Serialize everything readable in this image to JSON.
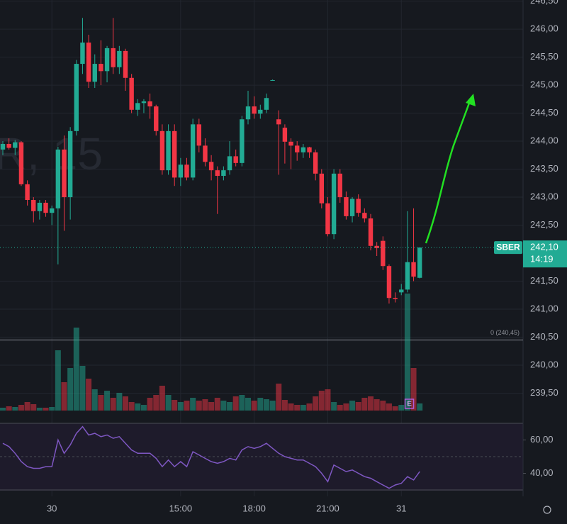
{
  "chart_data": {
    "type": "candlestick",
    "watermark": "R, 15",
    "symbol": "SBER",
    "countdown": "14:19",
    "last_price": {
      "value": 242.1,
      "label": "242,10"
    },
    "baseline": {
      "value": 240.45,
      "label": "0 (240,45)"
    },
    "event_label": "E",
    "up_color": "#22ab94",
    "down_color": "#f23645",
    "grid": true,
    "ylim": [
      239.19,
      246.52
    ],
    "yticks": [
      {
        "value": 246.5,
        "label": "246,50"
      },
      {
        "value": 246.0,
        "label": "246,00"
      },
      {
        "value": 245.5,
        "label": "245,50"
      },
      {
        "value": 245.0,
        "label": "245,00"
      },
      {
        "value": 244.5,
        "label": "244,50"
      },
      {
        "value": 244.0,
        "label": "244,00"
      },
      {
        "value": 243.5,
        "label": "243,50"
      },
      {
        "value": 243.0,
        "label": "243,00"
      },
      {
        "value": 242.5,
        "label": "242,50"
      },
      {
        "value": 241.5,
        "label": "241,50"
      },
      {
        "value": 241.0,
        "label": "241,00"
      },
      {
        "value": 240.5,
        "label": "240,50"
      },
      {
        "value": 240.0,
        "label": "240,00"
      },
      {
        "value": 239.5,
        "label": "239,50"
      }
    ],
    "categories": [
      null,
      null,
      null,
      null,
      null,
      null,
      null,
      null,
      "30",
      null,
      null,
      null,
      null,
      null,
      null,
      null,
      null,
      null,
      null,
      null,
      null,
      null,
      null,
      null,
      null,
      null,
      null,
      null,
      null,
      "15:00",
      null,
      null,
      null,
      null,
      null,
      null,
      null,
      null,
      null,
      null,
      null,
      "18:00",
      null,
      null,
      null,
      null,
      null,
      null,
      null,
      null,
      null,
      null,
      null,
      "21:00",
      null,
      null,
      null,
      null,
      null,
      null,
      null,
      null,
      null,
      null,
      null,
      "31",
      null,
      null,
      null
    ],
    "open": [
      243.85,
      243.95,
      243.88,
      243.98,
      243.23,
      242.95,
      242.75,
      242.9,
      242.72,
      242.8,
      243.85,
      243.0,
      244.18,
      245.38,
      245.76,
      245.06,
      245.38,
      245.25,
      245.66,
      245.32,
      245.61,
      245.13,
      244.56,
      244.68,
      244.71,
      244.62,
      244.18,
      243.48,
      244.18,
      243.35,
      243.58,
      243.35,
      244.3,
      243.92,
      243.63,
      243.48,
      243.38,
      243.48,
      243.73,
      243.61,
      244.39,
      244.62,
      244.49,
      244.56,
      245.09,
      244.39,
      244.24,
      243.99,
      243.92,
      243.8,
      243.89,
      243.8,
      243.42,
      242.89,
      242.34,
      243.42,
      243.0,
      242.66,
      242.97,
      242.72,
      242.62,
      242.13,
      242.22,
      241.77,
      241.2,
      241.3,
      241.35,
      241.84,
      241.56
    ],
    "high": [
      244.0,
      244.05,
      244.02,
      244.0,
      243.3,
      243.0,
      242.95,
      242.95,
      242.85,
      243.9,
      244.1,
      244.25,
      245.45,
      246.2,
      245.9,
      245.55,
      245.8,
      245.7,
      246.2,
      245.7,
      245.65,
      245.2,
      244.75,
      244.75,
      244.85,
      244.65,
      244.3,
      244.3,
      244.3,
      243.7,
      243.7,
      244.4,
      244.4,
      244.05,
      243.75,
      243.55,
      243.55,
      244.0,
      243.85,
      244.45,
      244.9,
      244.8,
      244.65,
      244.85,
      245.1,
      244.55,
      244.3,
      244.05,
      244.0,
      243.95,
      243.9,
      243.85,
      243.5,
      243.0,
      243.5,
      243.5,
      243.1,
      243.0,
      243.05,
      242.8,
      242.7,
      242.2,
      242.3,
      241.8,
      241.3,
      241.45,
      242.75,
      242.8,
      242.1
    ],
    "low": [
      243.75,
      243.85,
      243.75,
      243.2,
      242.85,
      242.55,
      242.6,
      242.65,
      242.5,
      241.8,
      242.4,
      242.6,
      244.1,
      245.2,
      244.95,
      244.95,
      245.0,
      245.05,
      245.2,
      245.2,
      244.9,
      244.5,
      244.45,
      244.5,
      244.4,
      244.1,
      243.4,
      243.4,
      243.2,
      243.2,
      243.3,
      243.3,
      243.8,
      243.55,
      243.3,
      242.7,
      243.3,
      243.4,
      243.55,
      243.55,
      244.3,
      244.4,
      244.4,
      244.5,
      245.08,
      243.4,
      243.6,
      243.5,
      243.65,
      243.7,
      243.7,
      243.3,
      242.8,
      242.3,
      242.25,
      242.9,
      242.6,
      242.55,
      242.65,
      242.55,
      242.05,
      241.95,
      241.7,
      241.1,
      241.12,
      241.25,
      241.3,
      241.5,
      241.55
    ],
    "close": [
      243.95,
      243.88,
      243.98,
      243.23,
      242.95,
      242.75,
      242.9,
      242.72,
      242.8,
      243.85,
      243.0,
      244.18,
      245.38,
      245.76,
      245.06,
      245.38,
      245.25,
      245.66,
      245.32,
      245.61,
      245.13,
      244.56,
      244.68,
      244.71,
      244.62,
      244.18,
      243.48,
      244.18,
      243.35,
      243.58,
      243.35,
      244.3,
      243.92,
      243.63,
      243.48,
      243.38,
      243.48,
      243.73,
      243.61,
      244.39,
      244.62,
      244.49,
      244.56,
      244.77,
      245.09,
      244.3,
      243.99,
      243.92,
      243.8,
      243.89,
      243.8,
      243.42,
      242.89,
      242.34,
      243.42,
      243.0,
      242.66,
      242.97,
      242.72,
      242.62,
      242.13,
      242.09,
      241.77,
      241.2,
      241.18,
      241.35,
      241.84,
      241.58,
      242.1
    ],
    "volume": [
      4,
      6,
      5,
      8,
      12,
      9,
      4,
      4,
      5,
      85,
      40,
      60,
      117,
      63,
      45,
      30,
      22,
      28,
      18,
      25,
      20,
      12,
      10,
      8,
      18,
      22,
      35,
      22,
      15,
      12,
      14,
      18,
      14,
      16,
      12,
      18,
      14,
      12,
      20,
      22,
      18,
      14,
      18,
      16,
      14,
      38,
      15,
      10,
      8,
      8,
      10,
      20,
      28,
      30,
      12,
      8,
      10,
      14,
      12,
      18,
      20,
      16,
      14,
      10,
      6,
      8,
      165,
      60,
      10
    ],
    "rsi": {
      "color": "#7e57c2",
      "ylim": [
        30,
        70
      ],
      "yticks": [
        {
          "value": 60,
          "label": "60,00"
        },
        {
          "value": 40,
          "label": "40,00"
        }
      ],
      "values": [
        58,
        56,
        52,
        47,
        44,
        43,
        43,
        44,
        44,
        60,
        52,
        57,
        64,
        68,
        63,
        64,
        62,
        63,
        61,
        62,
        58,
        54,
        52,
        52,
        52,
        49,
        44,
        48,
        44,
        47,
        44,
        53,
        51,
        49,
        47,
        46,
        47,
        49,
        48,
        54,
        56,
        55,
        56,
        58,
        55,
        52,
        50,
        49,
        48,
        48,
        46,
        44,
        40,
        35,
        45,
        43,
        41,
        42,
        40,
        38,
        37,
        35,
        33,
        31,
        33,
        34,
        38,
        36,
        41
      ]
    }
  }
}
